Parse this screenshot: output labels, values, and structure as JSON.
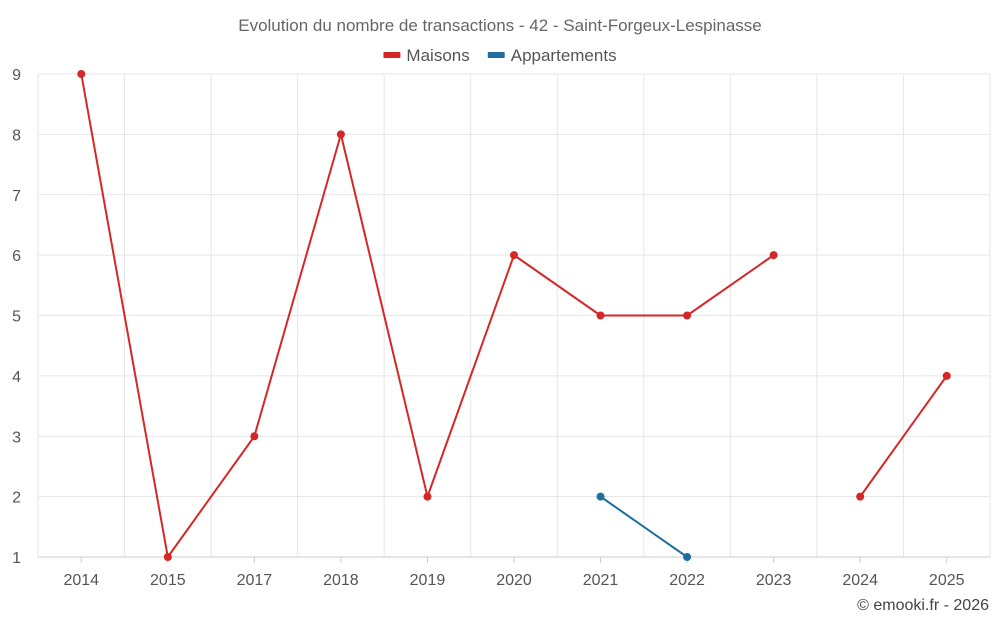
{
  "chart_data": {
    "type": "line",
    "title": "Evolution du nombre de transactions - 42 - Saint-Forgeux-Lespinasse",
    "categories": [
      "2014",
      "2015",
      "2017",
      "2018",
      "2019",
      "2020",
      "2021",
      "2022",
      "2023",
      "2024",
      "2025"
    ],
    "series": [
      {
        "name": "Maisons",
        "color": "#d62728",
        "values": [
          9,
          1,
          3,
          8,
          2,
          6,
          5,
          5,
          6,
          2,
          4
        ],
        "segments_connected": [
          true,
          true,
          true,
          true,
          true,
          true,
          true,
          true,
          false,
          true
        ]
      },
      {
        "name": "Appartements",
        "color": "#1f6ea0",
        "values": [
          null,
          null,
          null,
          null,
          null,
          null,
          2,
          1,
          null,
          null,
          null
        ]
      }
    ],
    "ylim": [
      1,
      9
    ],
    "yticks": [
      "1",
      "2",
      "3",
      "4",
      "5",
      "6",
      "7",
      "8",
      "9"
    ],
    "grid": true,
    "legend": "top-center"
  },
  "credit": "© emooki.fr - 2026"
}
